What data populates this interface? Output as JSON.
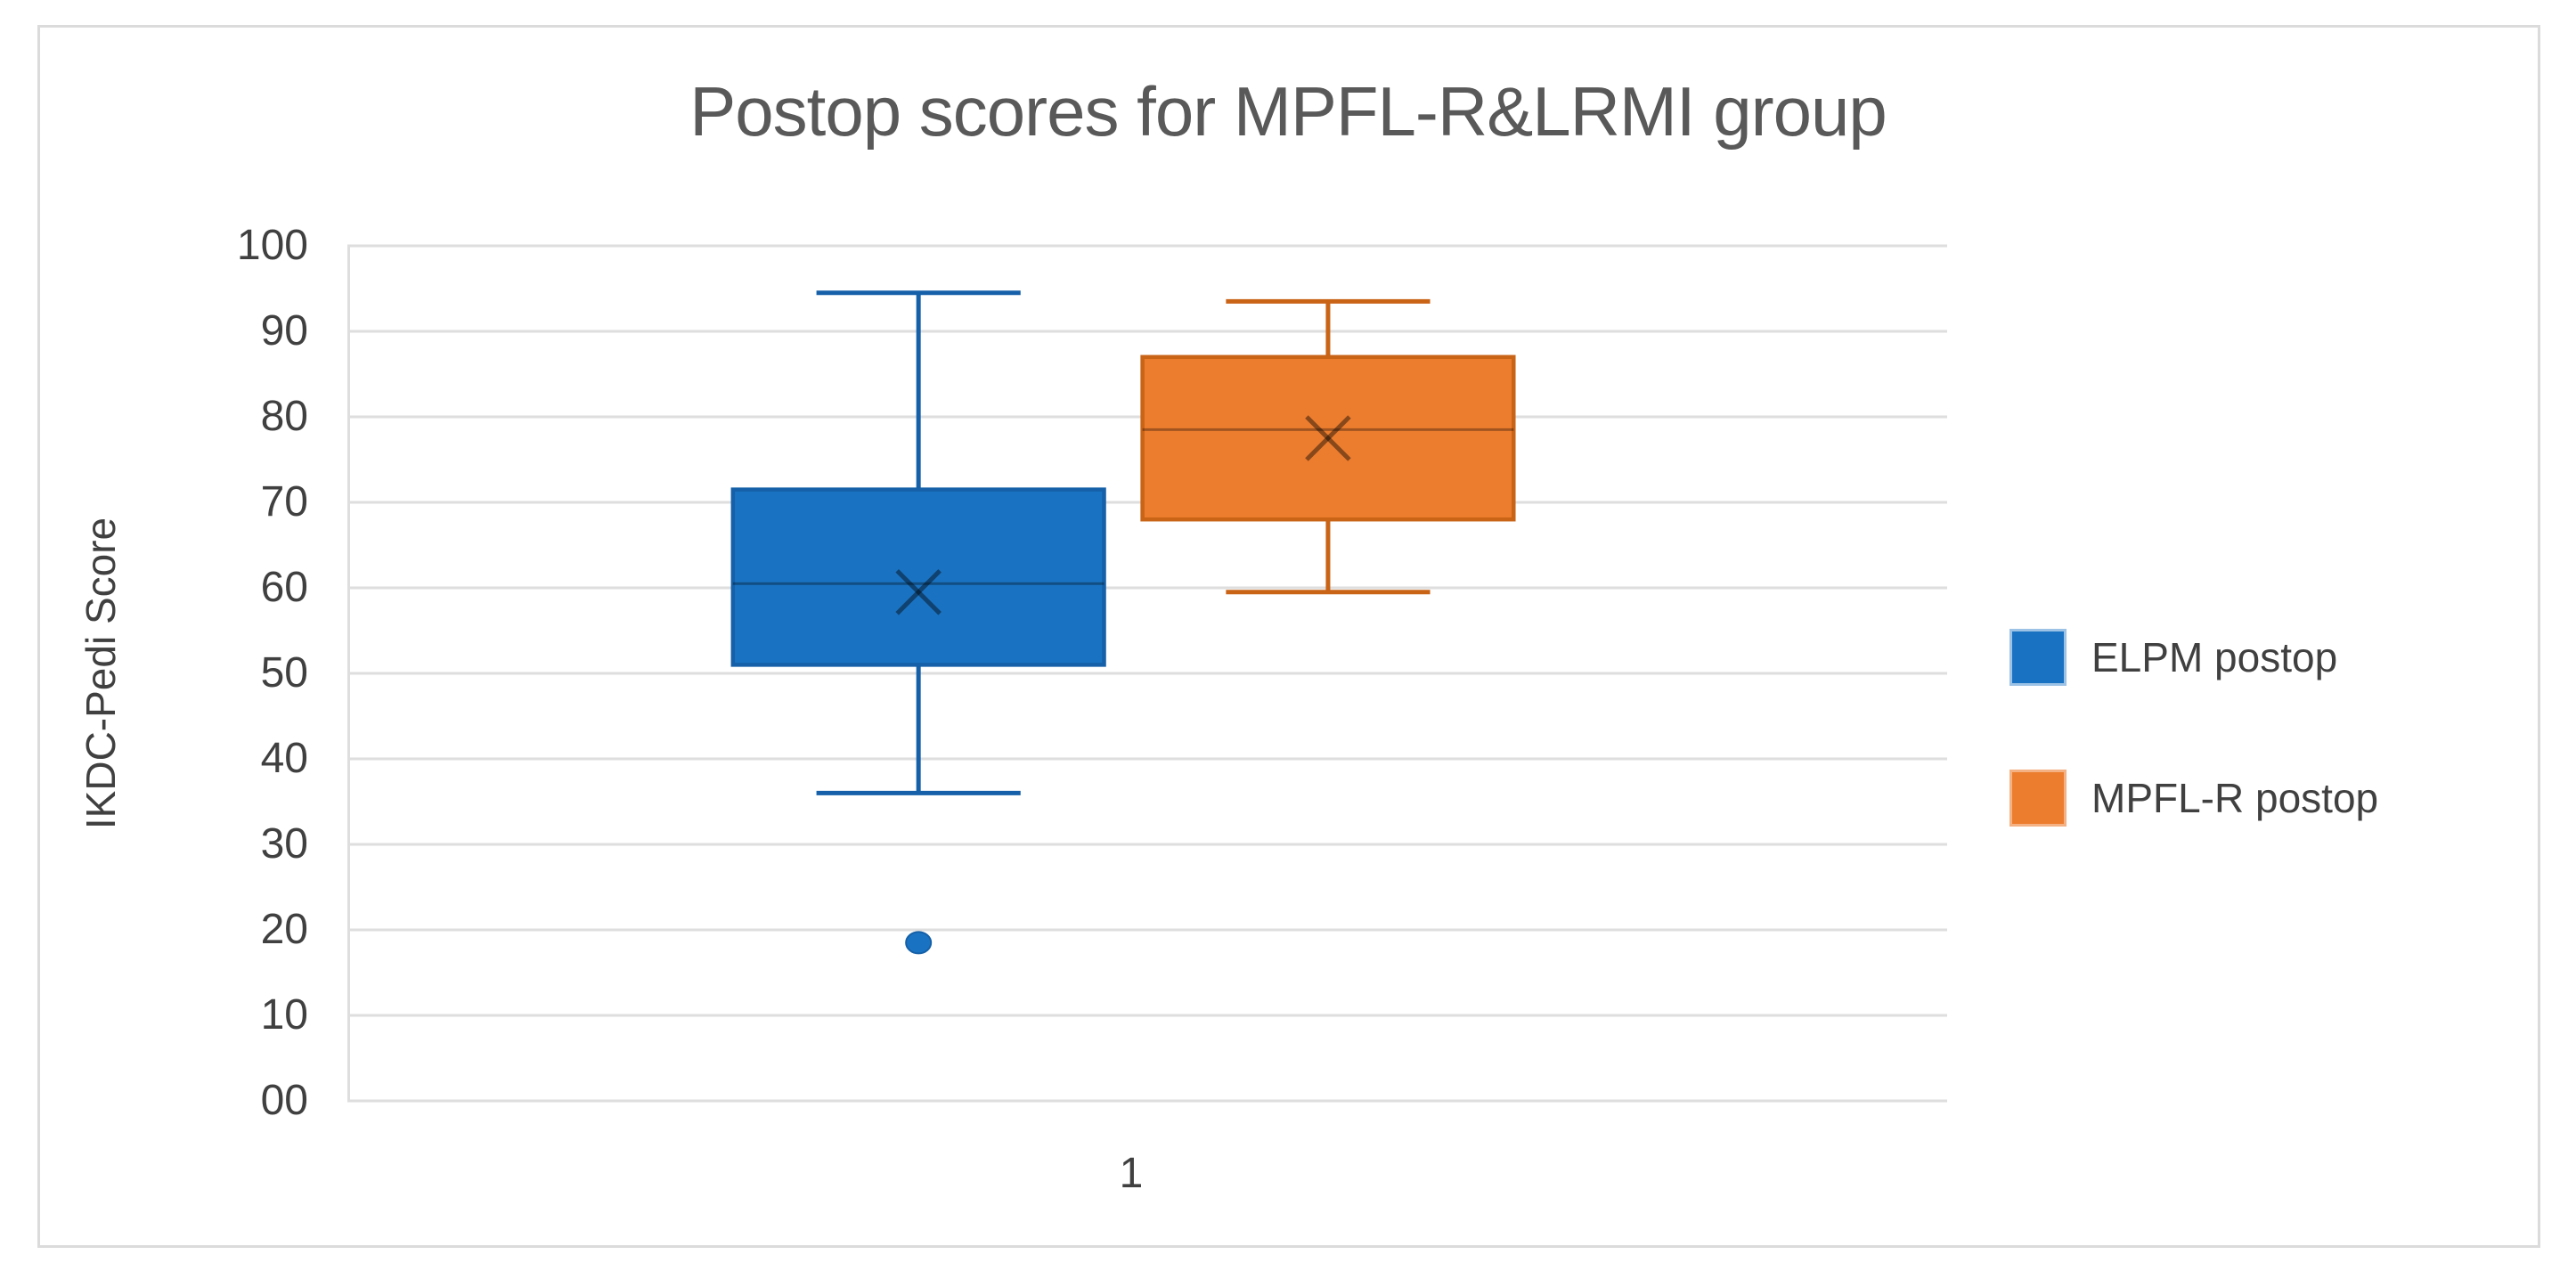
{
  "chart": {
    "title": "Postop scores for MPFL-R&LRMI group",
    "y_axis": {
      "label": "IKDC-Pedi Score",
      "tick_labels": [
        "100",
        "90",
        "80",
        "70",
        "60",
        "50",
        "40",
        "30",
        "20",
        "10",
        "00"
      ]
    },
    "x_axis": {
      "tick_labels": [
        "1"
      ]
    },
    "legend": [
      {
        "label": "ELPM postop",
        "color": "#1A73C2",
        "swatch_border": "#9CC2E5"
      },
      {
        "label": "MPFL-R postop",
        "color": "#ED7D2E",
        "swatch_border": "#F4B183"
      }
    ],
    "colors": {
      "title_text": "#595959",
      "axis_text": "#404040",
      "gridline": "#DEDEDE",
      "canvas_border": "#DBDBDB"
    }
  },
  "chart_data": {
    "type": "boxplot",
    "title": "Postop scores for MPFL-R&LRMI group",
    "xlabel": "",
    "ylabel": "IKDC-Pedi Score",
    "categories": [
      "1"
    ],
    "ylim": [
      0,
      100
    ],
    "ytick_step": 10,
    "grid": true,
    "legend_position": "right",
    "series": [
      {
        "name": "ELPM postop",
        "fill": "#1A73C2",
        "stroke": "#1560A8",
        "whisker_low": 36,
        "q1": 51,
        "median": 60.5,
        "mean": 59.5,
        "q3": 71.5,
        "whisker_high": 94.5,
        "outliers": [
          18.5
        ]
      },
      {
        "name": "MPFL-R postop",
        "fill": "#ED7D2E",
        "stroke": "#C96316",
        "whisker_low": 59.5,
        "q1": 68,
        "median": 78.5,
        "mean": 77.5,
        "q3": 87,
        "whisker_high": 93.5,
        "outliers": []
      }
    ]
  }
}
